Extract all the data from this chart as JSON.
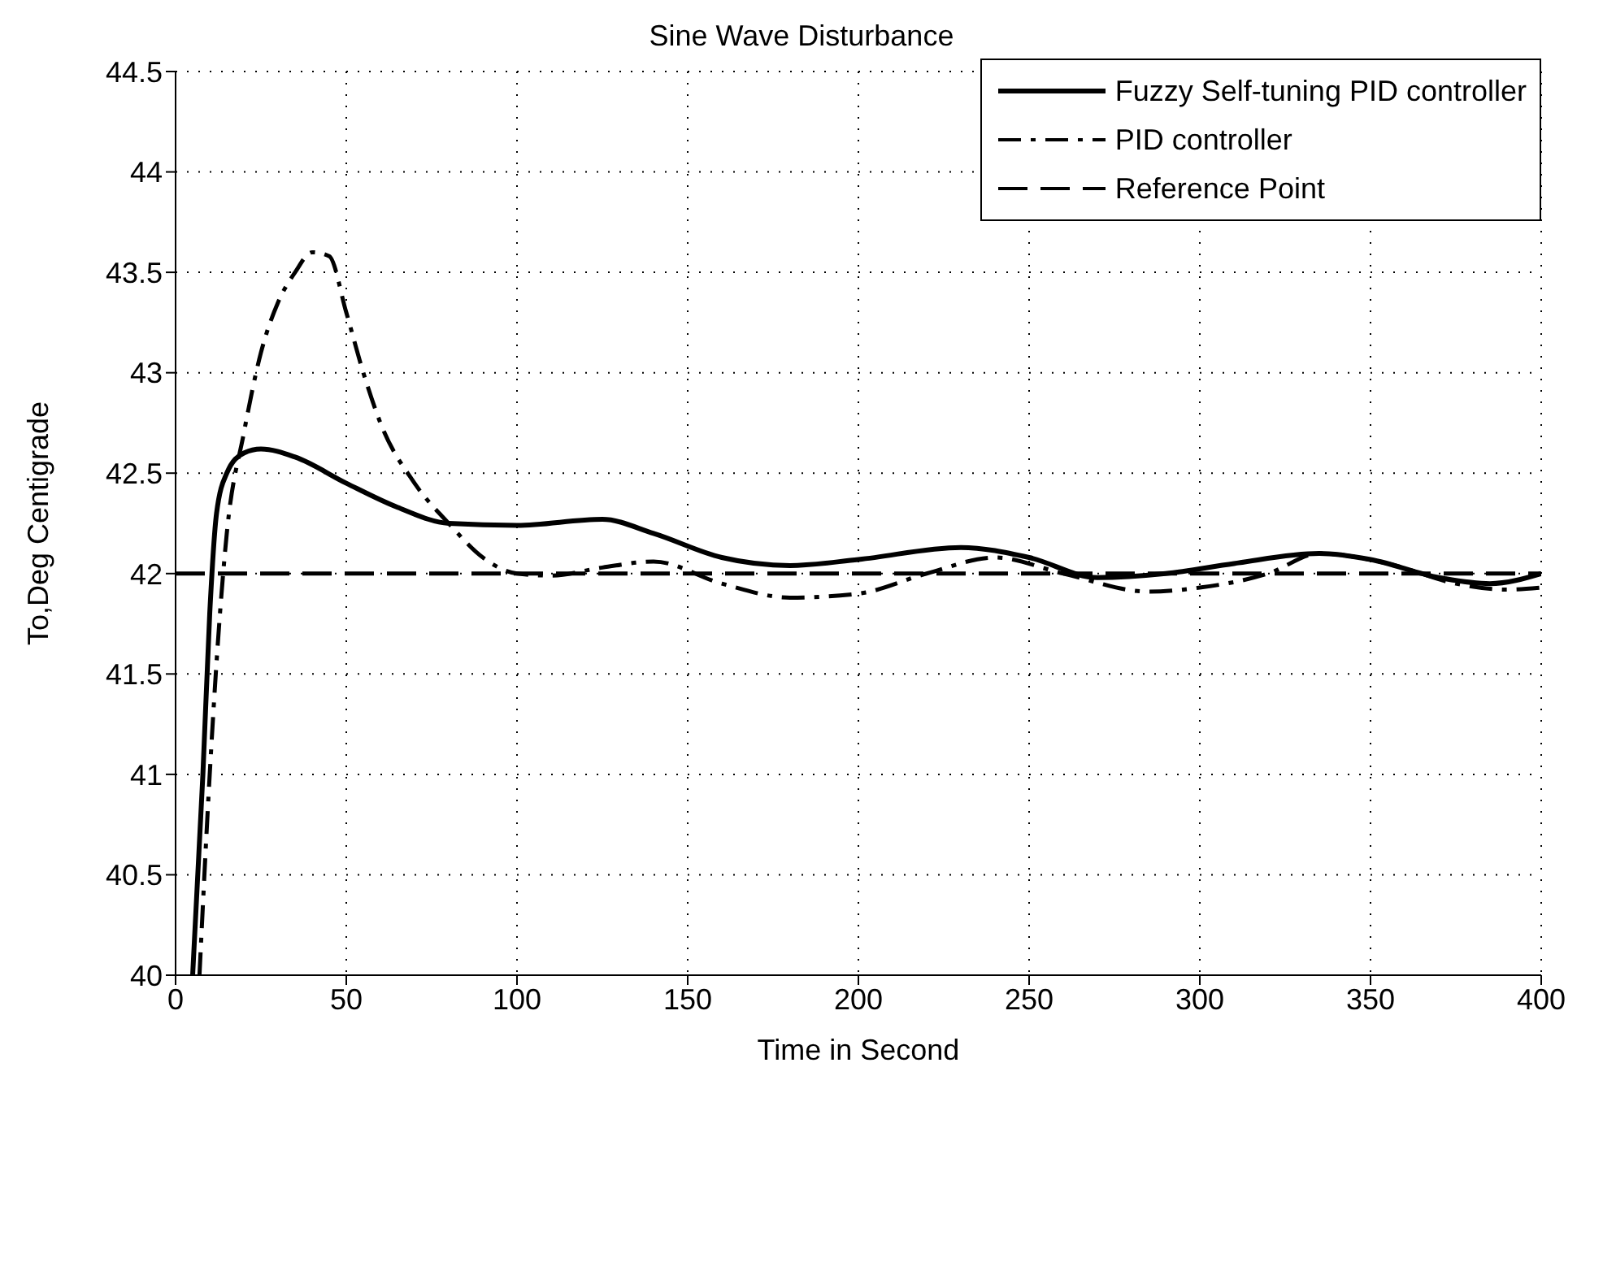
{
  "chart_data": {
    "type": "line",
    "title": "Sine Wave Disturbance",
    "xlabel": "Time in Second",
    "ylabel": "To,Deg Centigrade",
    "xlim": [
      0,
      400
    ],
    "xticks": [
      0,
      50,
      100,
      150,
      200,
      250,
      300,
      350,
      400
    ],
    "ylim": [
      40,
      44.5
    ],
    "yticks": [
      40,
      40.5,
      41,
      41.5,
      42,
      42.5,
      43,
      43.5,
      44,
      44.5
    ],
    "grid": true,
    "legend": "top right",
    "series": [
      {
        "name": "Fuzzy Self-tuning PID controller",
        "color": "#000000",
        "line_style": "solid",
        "x": [
          5,
          8,
          10,
          12,
          15,
          20,
          25,
          35,
          50,
          65,
          80,
          100,
          125,
          140,
          160,
          180,
          200,
          230,
          250,
          270,
          290,
          310,
          335,
          350,
          370,
          385,
          400
        ],
        "values": [
          40,
          41,
          41.8,
          42.3,
          42.5,
          42.6,
          42.62,
          42.58,
          42.45,
          42.33,
          42.25,
          42.24,
          42.27,
          42.2,
          42.08,
          42.04,
          42.07,
          42.13,
          42.08,
          41.98,
          42,
          42.05,
          42.1,
          42.07,
          41.98,
          41.95,
          42
        ]
      },
      {
        "name": "PID controller",
        "color": "#000000",
        "line_style": "dashdot",
        "x": [
          7,
          10,
          13,
          15,
          20,
          25,
          30,
          35,
          40,
          45,
          50,
          55,
          60,
          70,
          80,
          90,
          100,
          110,
          125,
          140,
          160,
          180,
          200,
          220,
          240,
          260,
          285,
          300,
          320,
          335,
          355,
          375,
          390,
          400
        ],
        "values": [
          40,
          41,
          41.8,
          42.2,
          42.7,
          43.1,
          43.35,
          43.5,
          43.6,
          43.58,
          43.3,
          43,
          42.75,
          42.45,
          42.25,
          42.08,
          42,
          41.99,
          42.03,
          42.06,
          41.95,
          41.88,
          41.9,
          42,
          42.08,
          42,
          41.91,
          41.93,
          42,
          42.1,
          42.05,
          41.95,
          41.92,
          41.93
        ]
      },
      {
        "name": "Reference Point",
        "color": "#000000",
        "line_style": "dashed",
        "x": [
          0,
          50,
          100,
          150,
          200,
          250,
          300,
          350,
          400
        ],
        "values": [
          42,
          42,
          42,
          42,
          42,
          42,
          42,
          42,
          42
        ]
      }
    ]
  }
}
